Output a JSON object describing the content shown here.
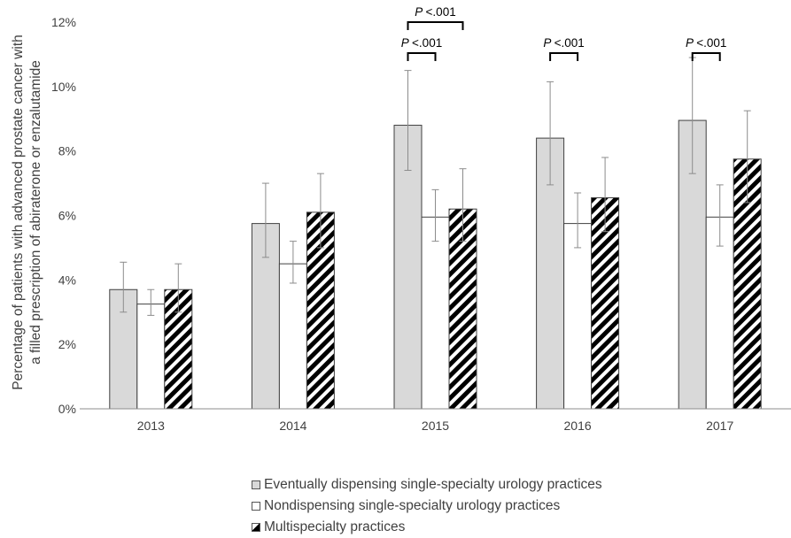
{
  "chart_data": {
    "type": "bar",
    "ylabel": "Percentage of patients with advanced prostate cancer with a filled prescription of abiraterone or enzalutamide",
    "ylabel_lines": [
      "Percentage of patients with advanced prostate cancer with",
      "a filled prescription of abiraterone or enzalutamide"
    ],
    "categories": [
      "2013",
      "2014",
      "2015",
      "2016",
      "2017"
    ],
    "ylim": [
      0,
      12
    ],
    "yticks": [
      "0%",
      "2%",
      "4%",
      "6%",
      "8%",
      "10%",
      "12%"
    ],
    "grid": false,
    "legend_position": "bottom",
    "series": [
      {
        "name": "Eventually dispensing single-specialty urology practices",
        "fill": "#d9d9d9",
        "pattern": "solid",
        "values": [
          3.7,
          5.75,
          8.8,
          8.4,
          8.95
        ],
        "error_low": [
          3.0,
          4.7,
          7.4,
          6.95,
          7.3
        ],
        "error_high": [
          4.55,
          7.0,
          10.5,
          10.15,
          10.9
        ]
      },
      {
        "name": "Nondispensing single-specialty urology practices",
        "fill": "#ffffff",
        "pattern": "solid",
        "values": [
          3.25,
          4.5,
          5.95,
          5.75,
          5.95
        ],
        "error_low": [
          2.9,
          3.9,
          5.2,
          5.0,
          5.05
        ],
        "error_high": [
          3.7,
          5.2,
          6.8,
          6.7,
          6.95
        ]
      },
      {
        "name": "Multispecialty practices",
        "fill": "#000000",
        "pattern": "diagonal-stripes",
        "values": [
          3.7,
          6.1,
          6.2,
          6.55,
          7.75
        ],
        "error_low": [
          3.0,
          5.0,
          5.2,
          5.5,
          6.4
        ],
        "error_high": [
          4.5,
          7.3,
          7.45,
          7.8,
          9.25
        ]
      }
    ],
    "annotations": [
      {
        "text": "P <.001",
        "category": "2015",
        "from_series": 0,
        "to_series": 1,
        "level": 0
      },
      {
        "text": "P <.001",
        "category": "2015",
        "from_series": 0,
        "to_series": 2,
        "level": 1
      },
      {
        "text": "P <.001",
        "category": "2016",
        "from_series": 0,
        "to_series": 1,
        "level": 0
      },
      {
        "text": "P <.001",
        "category": "2017",
        "from_series": 0,
        "to_series": 1,
        "level": 0
      }
    ]
  }
}
